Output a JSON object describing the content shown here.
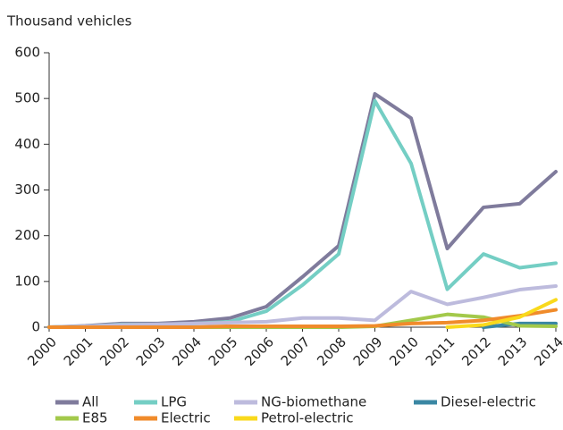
{
  "chart_data": {
    "type": "line",
    "y_label": "Thousand vehicles",
    "categories": [
      "2000",
      "2001",
      "2002",
      "2003",
      "2004",
      "2005",
      "2006",
      "2007",
      "2008",
      "2009",
      "2010",
      "2011",
      "2012",
      "2013",
      "2014"
    ],
    "series": [
      {
        "name": "All",
        "color": "#7f7b9c",
        "values": [
          0,
          3,
          8,
          8,
          12,
          20,
          45,
          110,
          178,
          510,
          457,
          172,
          262,
          270,
          340
        ]
      },
      {
        "name": "LPG",
        "color": "#74cec4",
        "values": [
          0,
          2,
          6,
          6,
          8,
          12,
          35,
          92,
          160,
          495,
          358,
          83,
          160,
          130,
          140
        ]
      },
      {
        "name": "NG-biomethane",
        "color": "#bdbbdd",
        "values": [
          0,
          2,
          5,
          6,
          8,
          10,
          12,
          20,
          20,
          15,
          78,
          50,
          65,
          82,
          90
        ]
      },
      {
        "name": "Diesel-electric",
        "color": "#3a87a3",
        "values": [
          null,
          null,
          null,
          null,
          null,
          null,
          null,
          null,
          null,
          null,
          null,
          null,
          0,
          8,
          8
        ]
      },
      {
        "name": "E85",
        "color": "#a3c94b",
        "values": [
          0,
          0,
          0,
          0,
          0,
          0,
          0,
          0,
          0,
          2,
          15,
          28,
          22,
          3,
          2
        ]
      },
      {
        "name": "Electric",
        "color": "#f08b2b",
        "values": [
          0,
          0,
          0,
          0,
          0,
          2,
          2,
          2,
          2,
          3,
          8,
          10,
          15,
          25,
          38
        ]
      },
      {
        "name": "Petrol-electric",
        "color": "#f9d91c",
        "values": [
          null,
          null,
          null,
          null,
          null,
          null,
          null,
          null,
          null,
          null,
          null,
          0,
          5,
          22,
          60
        ]
      }
    ],
    "ylim": [
      0,
      600
    ],
    "yticks": [
      0,
      100,
      200,
      300,
      400,
      500,
      600
    ]
  }
}
